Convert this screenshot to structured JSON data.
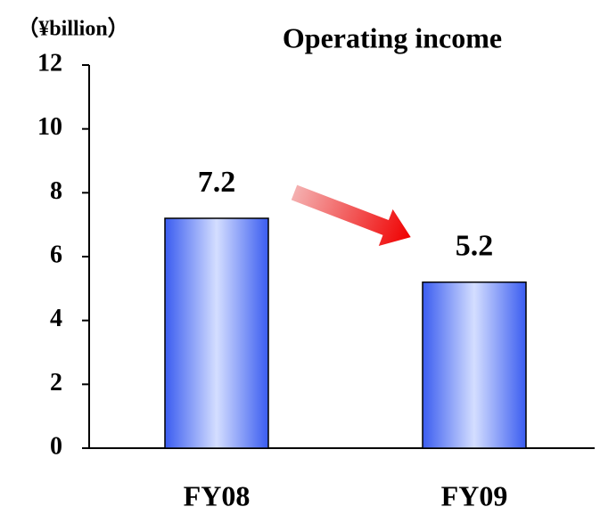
{
  "chart_data": {
    "type": "bar",
    "title": "Operating income",
    "y_label": "（¥billion）",
    "categories": [
      "FY08",
      "FY09"
    ],
    "values": [
      7.2,
      5.2
    ],
    "color": "#3a5cf0",
    "ylim": [
      0,
      12
    ],
    "yticks": [
      0,
      2,
      4,
      6,
      8,
      10,
      12
    ],
    "grid": false
  }
}
